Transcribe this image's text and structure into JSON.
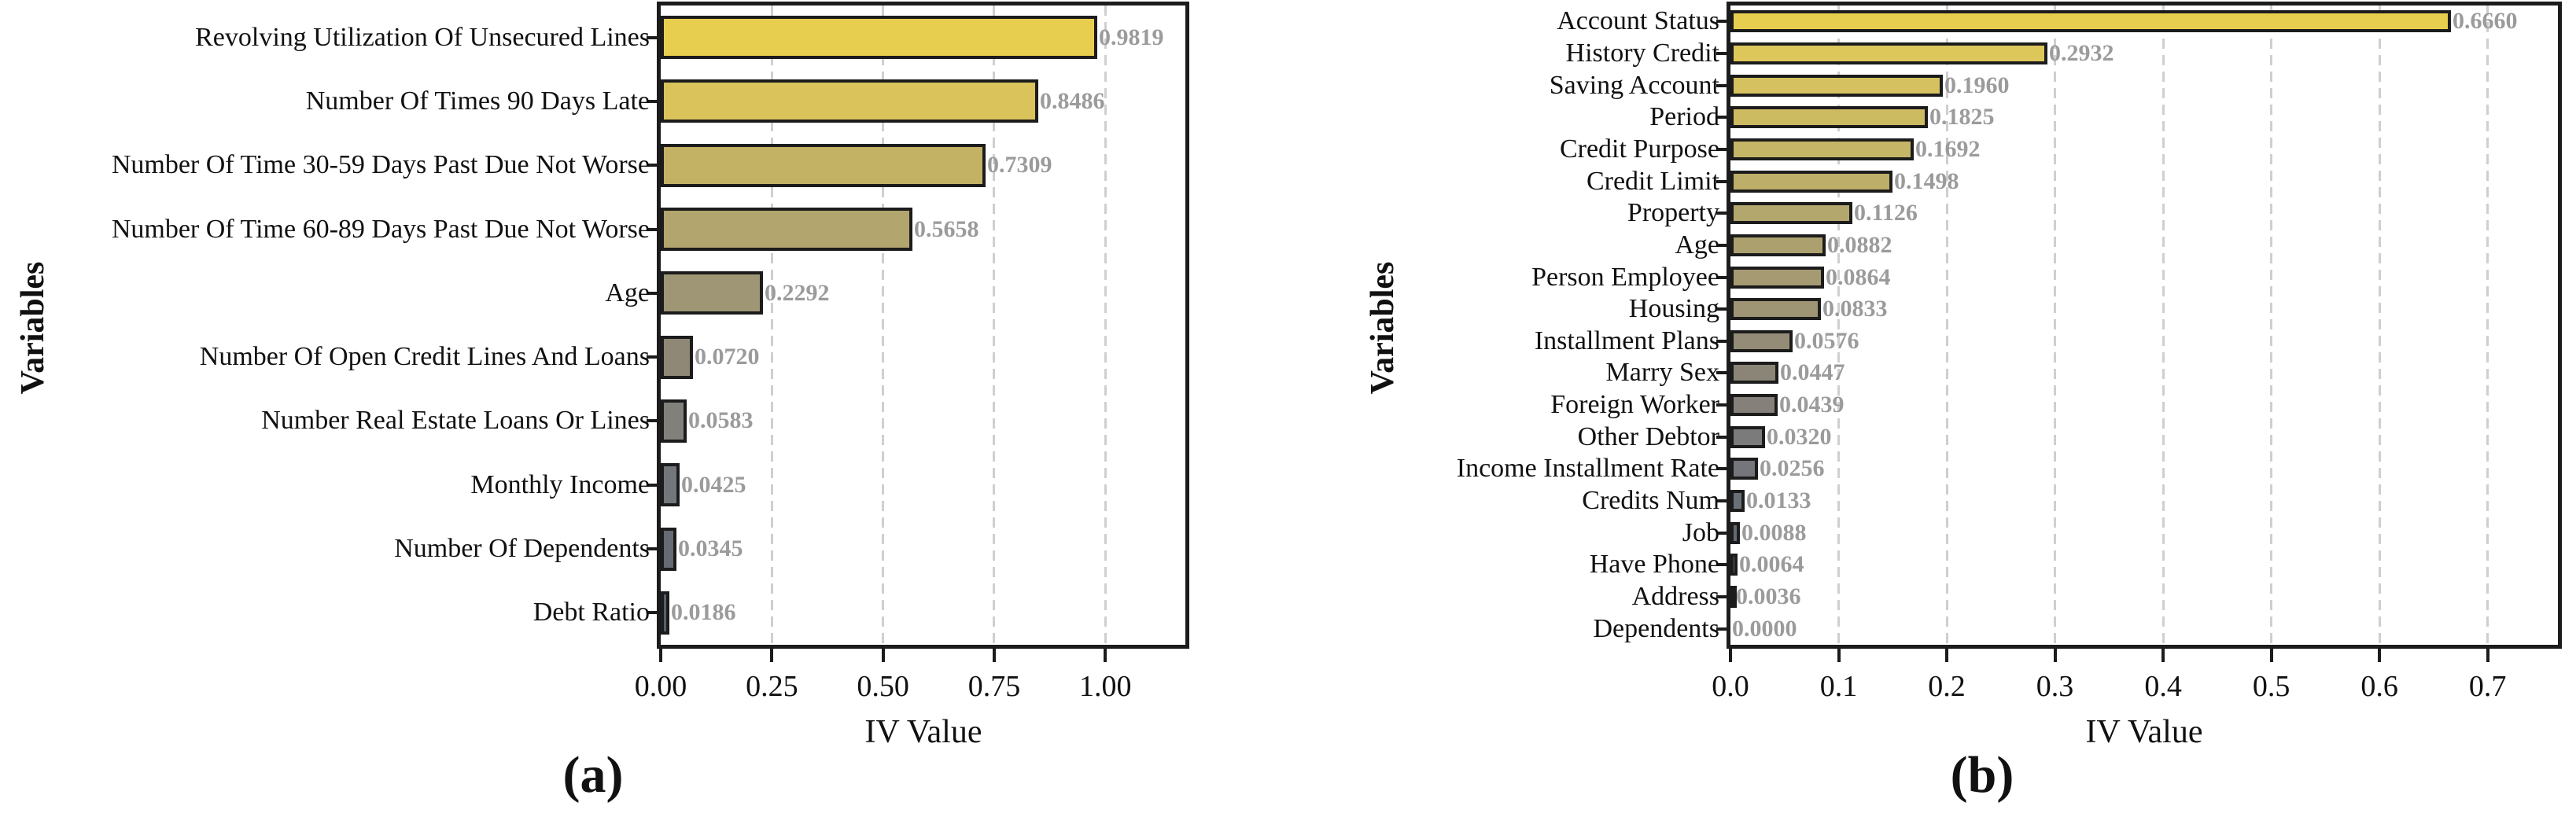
{
  "figure": {
    "background": "#ffffff",
    "bar_border_color": "#1c1c1c",
    "grid_color": "#cfcfcf",
    "value_label_color": "#9b9b9b",
    "axis_color": "#1c1c1c"
  },
  "chart_data": [
    {
      "type": "bar",
      "orientation": "horizontal",
      "caption": "(a)",
      "xlabel": "IV Value",
      "ylabel": "Variables",
      "grid": true,
      "legend": "none",
      "xlim": [
        0,
        1.18
      ],
      "xticks": [
        {
          "label": "0.00",
          "value": 0
        },
        {
          "label": "0.25",
          "value": 0.25
        },
        {
          "label": "0.50",
          "value": 0.5
        },
        {
          "label": "0.75",
          "value": 0.75
        },
        {
          "label": "1.00",
          "value": 1.0
        }
      ],
      "categories": [
        "Revolving Utilization Of Unsecured Lines",
        "Number Of Times 90 Days Late",
        "Number Of Time 30-59 Days Past Due Not Worse",
        "Number Of Time 60-89 Days Past Due Not Worse",
        "Age",
        "Number Of Open Credit Lines And Loans",
        "Number Real Estate Loans Or Lines",
        "Monthly Income",
        "Number Of Dependents",
        "Debt Ratio"
      ],
      "values": [
        0.9819,
        0.8486,
        0.7309,
        0.5658,
        0.2292,
        0.072,
        0.0583,
        0.0425,
        0.0345,
        0.0186
      ],
      "value_labels": [
        "0.9819",
        "0.8486",
        "0.7309",
        "0.5658",
        "0.2292",
        "0.0720",
        "0.0583",
        "0.0425",
        "0.0345",
        "0.0186"
      ],
      "bar_colors": [
        "#e8ce4e",
        "#d9c35a",
        "#c3b264",
        "#b2a56e",
        "#9e9675",
        "#8f8877",
        "#82807b",
        "#73767b",
        "#656a74",
        "#58606d"
      ]
    },
    {
      "type": "bar",
      "orientation": "horizontal",
      "caption": "(b)",
      "xlabel": "IV Value",
      "ylabel": "Variables",
      "grid": true,
      "legend": "none",
      "xlim": [
        0,
        0.765
      ],
      "xticks": [
        {
          "label": "0.0",
          "value": 0
        },
        {
          "label": "0.1",
          "value": 0.1
        },
        {
          "label": "0.2",
          "value": 0.2
        },
        {
          "label": "0.3",
          "value": 0.3
        },
        {
          "label": "0.4",
          "value": 0.4
        },
        {
          "label": "0.5",
          "value": 0.5
        },
        {
          "label": "0.6",
          "value": 0.6
        },
        {
          "label": "0.7",
          "value": 0.7
        }
      ],
      "categories": [
        "Account Status",
        "History Credit",
        "Saving Account",
        "Period",
        "Credit Purpose",
        "Credit Limit",
        "Property",
        "Age",
        "Person Employee",
        "Housing",
        "Installment Plans",
        "Marry Sex",
        "Foreign Worker",
        "Other Debtor",
        "Income Installment Rate",
        "Credits Num",
        "Job",
        "Have Phone",
        "Address",
        "Dependents"
      ],
      "values": [
        0.666,
        0.2932,
        0.196,
        0.1825,
        0.1692,
        0.1498,
        0.1126,
        0.0882,
        0.0864,
        0.0833,
        0.0576,
        0.0447,
        0.0439,
        0.032,
        0.0256,
        0.0133,
        0.0088,
        0.0064,
        0.0036,
        0.0
      ],
      "value_labels": [
        "0.6660",
        "0.2932",
        "0.1960",
        "0.1825",
        "0.1692",
        "0.1498",
        "0.1126",
        "0.0882",
        "0.0864",
        "0.0833",
        "0.0576",
        "0.0447",
        "0.0439",
        "0.0320",
        "0.0256",
        "0.0133",
        "0.0088",
        "0.0064",
        "0.0036",
        "0.0000"
      ],
      "bar_colors": [
        "#e8ce4e",
        "#ddc75a",
        "#d5c15f",
        "#cdbb62",
        "#c5b566",
        "#bdae69",
        "#b4a76d",
        "#aca06f",
        "#a59a72",
        "#9e9574",
        "#948c77",
        "#8b8578",
        "#85817a",
        "#7b7b7b",
        "#74767b",
        "#6a7077",
        "#636a73",
        "#5e6571",
        "#59616e",
        "#545c6b"
      ]
    }
  ]
}
